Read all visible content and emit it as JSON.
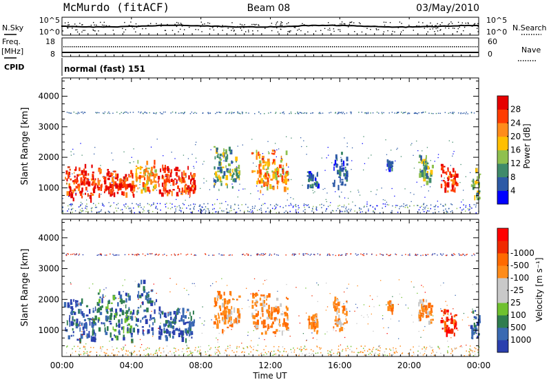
{
  "header": {
    "station": "McMurdo (fitACF)",
    "beam": "Beam 08",
    "date": "03/May/2010"
  },
  "side_labels": {
    "nsky": "N.Sky",
    "freq": "Freq.",
    "freq_unit": "[MHz]",
    "cpid": "CPID",
    "nsearch": "N.Search",
    "nave": "Nave"
  },
  "cpid_value": "normal (fast) 151",
  "colors": {
    "power_scale": [
      "#0000ff",
      "#2d5aa6",
      "#3f8a6a",
      "#8fc04f",
      "#ffbf00",
      "#ff8c1a",
      "#ff3c00",
      "#e60000"
    ],
    "velocity_scale": [
      "#2a3fae",
      "#3a6ab2",
      "#2f7d4f",
      "#6fc12f",
      "#c9c9c9",
      "#c9c9c9",
      "#ff8c1a",
      "#ff6a00",
      "#f02a00",
      "#ff0000"
    ]
  },
  "chart_data": [
    {
      "type": "line",
      "panel": "noise",
      "left_ticks": [
        "10^5",
        "10^0"
      ],
      "right_ticks": [
        "10^5",
        "10^0"
      ],
      "left_label": "N.Sky",
      "right_label": "N.Search"
    },
    {
      "type": "line",
      "panel": "frequency",
      "left_ticks": [
        "18",
        "8"
      ],
      "right_ticks": [
        "60",
        "0"
      ],
      "left_label": "Freq. [MHz]",
      "right_label": "Nave"
    },
    {
      "type": "heatmap",
      "panel": "power",
      "ylabel": "Slant Range [km]",
      "ylim": [
        150,
        4600
      ],
      "yticks": [
        1000,
        2000,
        3000,
        4000
      ],
      "xlim": [
        0,
        24
      ],
      "xunit": "hours UT",
      "colorbar": {
        "label": "Power [dB]",
        "ticks": [
          "4",
          "8",
          "12",
          "16",
          "20",
          "24",
          "28"
        ],
        "range": [
          0,
          32
        ]
      },
      "echo_regions": [
        {
          "start": 0.1,
          "end": 1.9,
          "range": [
            600,
            1800
          ],
          "dominant": "red"
        },
        {
          "start": 2.0,
          "end": 4.1,
          "range": [
            700,
            1700
          ],
          "dominant": "red"
        },
        {
          "start": 4.2,
          "end": 5.4,
          "range": [
            800,
            2000
          ],
          "dominant": "orange"
        },
        {
          "start": 5.5,
          "end": 7.6,
          "range": [
            700,
            1800
          ],
          "dominant": "red"
        },
        {
          "start": 8.7,
          "end": 10.2,
          "range": [
            1000,
            2400
          ],
          "dominant": "green"
        },
        {
          "start": 10.9,
          "end": 13.0,
          "range": [
            900,
            2300
          ],
          "dominant": "orange"
        },
        {
          "start": 14.1,
          "end": 14.7,
          "range": [
            1000,
            1600
          ],
          "dominant": "blue"
        },
        {
          "start": 15.6,
          "end": 16.4,
          "range": [
            1000,
            2200
          ],
          "dominant": "blue"
        },
        {
          "start": 18.7,
          "end": 19.0,
          "range": [
            1500,
            2000
          ],
          "dominant": "blue"
        },
        {
          "start": 20.5,
          "end": 21.3,
          "range": [
            1200,
            2100
          ],
          "dominant": "green"
        },
        {
          "start": 21.8,
          "end": 22.7,
          "range": [
            900,
            1800
          ],
          "dominant": "red"
        },
        {
          "start": 23.5,
          "end": 24.0,
          "range": [
            600,
            1800
          ],
          "dominant": "green"
        }
      ]
    },
    {
      "type": "heatmap",
      "panel": "velocity",
      "ylabel": "Slant Range [km]",
      "ylim": [
        150,
        4600
      ],
      "yticks": [
        1000,
        2000,
        3000,
        4000
      ],
      "xlim": [
        0,
        24
      ],
      "xlabel": "Time UT",
      "xticks": [
        "00:00",
        "04:00",
        "08:00",
        "12:00",
        "16:00",
        "20:00",
        "00:00"
      ],
      "colorbar": {
        "label": "Velocity [m s⁻¹]",
        "ticks": [
          "1000",
          "500",
          "100",
          "25",
          "-25",
          "-100",
          "-500",
          "-1000"
        ]
      },
      "echo_regions": [
        {
          "start": 0.1,
          "end": 1.9,
          "range": [
            600,
            2100
          ],
          "dominant": "blue"
        },
        {
          "start": 2.0,
          "end": 4.1,
          "range": [
            700,
            2400
          ],
          "dominant": "green"
        },
        {
          "start": 4.2,
          "end": 5.4,
          "range": [
            800,
            2800
          ],
          "dominant": "blue"
        },
        {
          "start": 5.5,
          "end": 7.6,
          "range": [
            700,
            1800
          ],
          "dominant": "blue"
        },
        {
          "start": 8.7,
          "end": 10.2,
          "range": [
            1000,
            2400
          ],
          "dominant": "orange"
        },
        {
          "start": 10.9,
          "end": 13.0,
          "range": [
            900,
            2300
          ],
          "dominant": "orange"
        },
        {
          "start": 14.1,
          "end": 14.7,
          "range": [
            900,
            1600
          ],
          "dominant": "orange"
        },
        {
          "start": 15.6,
          "end": 16.4,
          "range": [
            1000,
            2200
          ],
          "dominant": "orange"
        },
        {
          "start": 18.7,
          "end": 19.0,
          "range": [
            1500,
            2000
          ],
          "dominant": "orange"
        },
        {
          "start": 20.5,
          "end": 21.3,
          "range": [
            1200,
            2100
          ],
          "dominant": "orange"
        },
        {
          "start": 21.8,
          "end": 22.7,
          "range": [
            900,
            1800
          ],
          "dominant": "red"
        },
        {
          "start": 23.5,
          "end": 24.0,
          "range": [
            600,
            1800
          ],
          "dominant": "blue"
        }
      ]
    }
  ]
}
